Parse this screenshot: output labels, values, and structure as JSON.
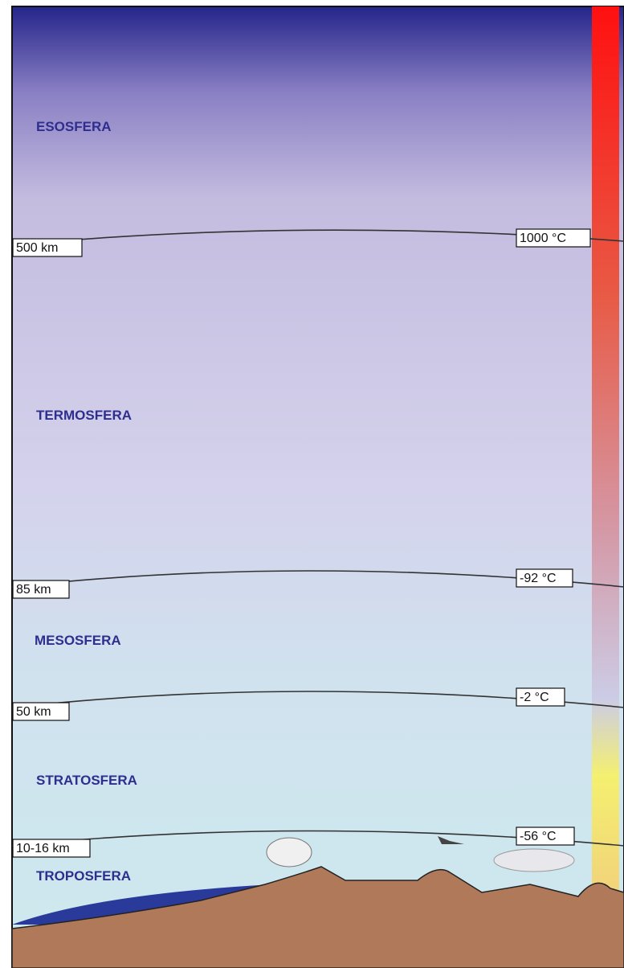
{
  "layers": [
    "ESOSFERA",
    "TERMOSFERA",
    "MESOSFERA",
    "STRATOSFERA",
    "TROPOSFERA"
  ],
  "boundaries": [
    {
      "altitude": "500 km",
      "temperature": "1000 °C"
    },
    {
      "altitude": "85 km",
      "temperature": "-92 °C"
    },
    {
      "altitude": "50 km",
      "temperature": "-2 °C"
    },
    {
      "altitude": "10-16 km",
      "temperature": "-56 °C"
    }
  ]
}
